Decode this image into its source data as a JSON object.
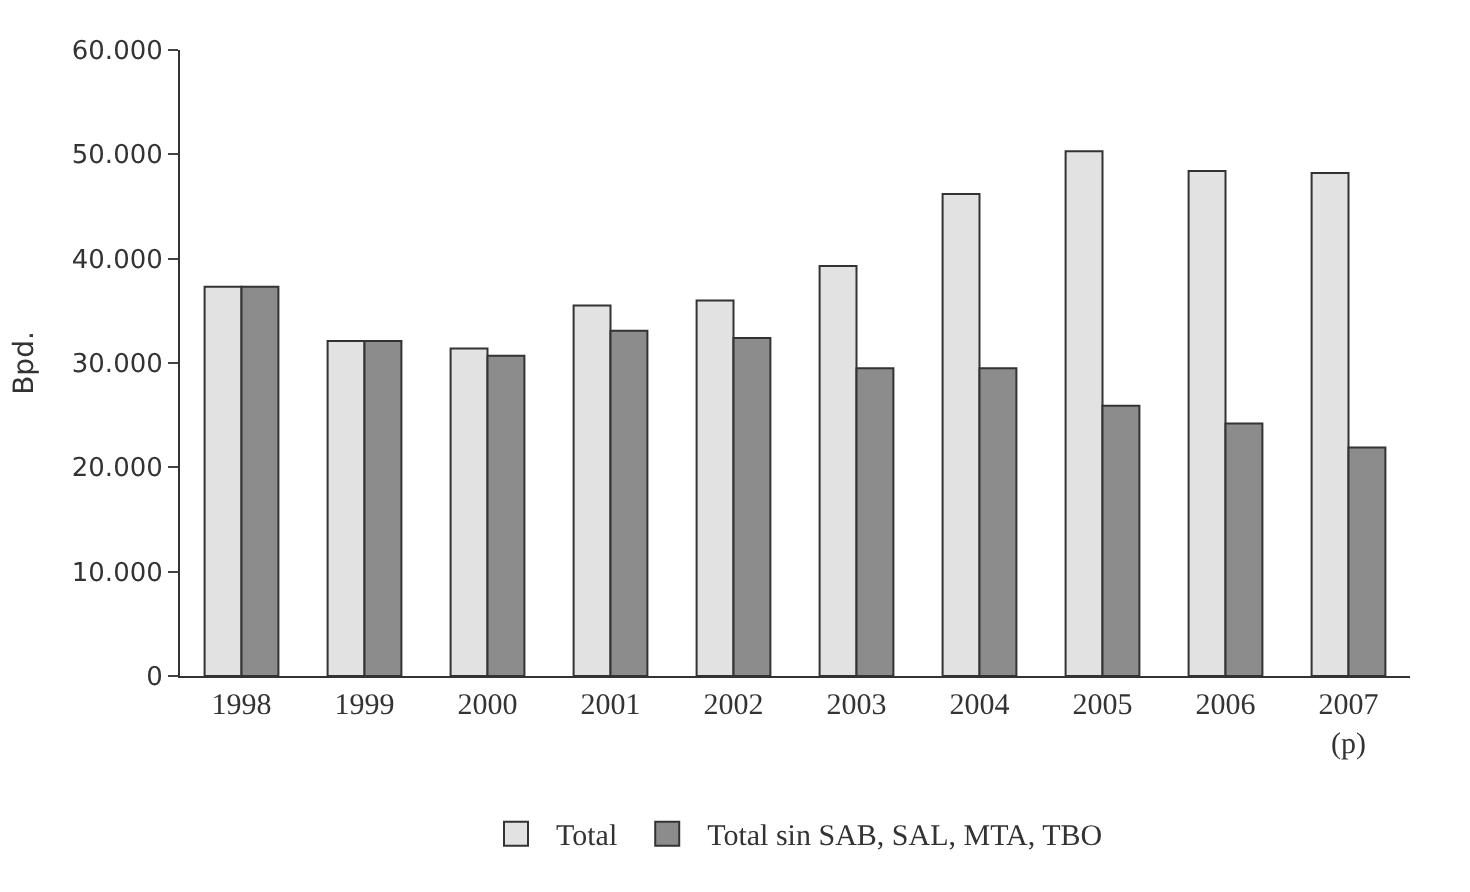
{
  "chart_data": {
    "type": "bar",
    "ylabel": "Bpd.",
    "categories": [
      "1998",
      "1999",
      "2000",
      "2001",
      "2002",
      "2003",
      "2004",
      "2005",
      "2006",
      "2007\n(p)"
    ],
    "series": [
      {
        "name": "Total",
        "color": "#e2e2e2",
        "values": [
          37300,
          32100,
          31400,
          35500,
          36000,
          39300,
          46200,
          50300,
          48400,
          48200
        ]
      },
      {
        "name": "Total sin SAB, SAL, MTA, TBO",
        "color": "#8c8c8c",
        "values": [
          37300,
          32100,
          30700,
          33100,
          32400,
          29500,
          29500,
          25900,
          24200,
          21900
        ]
      }
    ],
    "ylim": [
      0,
      60000
    ],
    "yticks": [
      {
        "value": 0,
        "label": "0"
      },
      {
        "value": 10000,
        "label": "10.000"
      },
      {
        "value": 20000,
        "label": "20.000"
      },
      {
        "value": 30000,
        "label": "30.000"
      },
      {
        "value": 40000,
        "label": "40.000"
      },
      {
        "value": 50000,
        "label": "50.000"
      },
      {
        "value": 60000,
        "label": "60.000"
      }
    ],
    "legend": "bottom"
  }
}
